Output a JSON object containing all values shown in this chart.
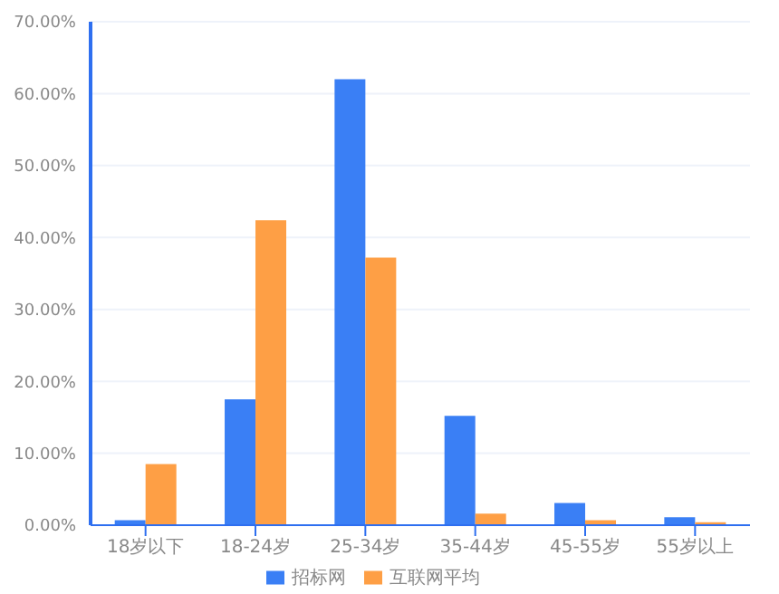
{
  "chart_data": {
    "type": "bar",
    "categories": [
      "18岁以下",
      "18-24岁",
      "25-34岁",
      "35-44岁",
      "45-55岁",
      "55岁以上"
    ],
    "series": [
      {
        "name": "招标网",
        "color": "#3a7ff5",
        "values": [
          0.7,
          17.5,
          62.0,
          15.2,
          3.1,
          1.1
        ]
      },
      {
        "name": "互联网平均",
        "color": "#fe9f45",
        "values": [
          8.5,
          42.4,
          37.2,
          1.6,
          0.7,
          0.4
        ]
      }
    ],
    "ylim": [
      0,
      70
    ],
    "yticks": [
      {
        "value": 0,
        "label": "0.00%"
      },
      {
        "value": 10,
        "label": "10.00%"
      },
      {
        "value": 20,
        "label": "20.00%"
      },
      {
        "value": 30,
        "label": "30.00%"
      },
      {
        "value": 40,
        "label": "40.00%"
      },
      {
        "value": 50,
        "label": "50.00%"
      },
      {
        "value": 60,
        "label": "60.00%"
      },
      {
        "value": 70,
        "label": "70.00%"
      }
    ],
    "grid": "y",
    "legend": "bottom"
  }
}
